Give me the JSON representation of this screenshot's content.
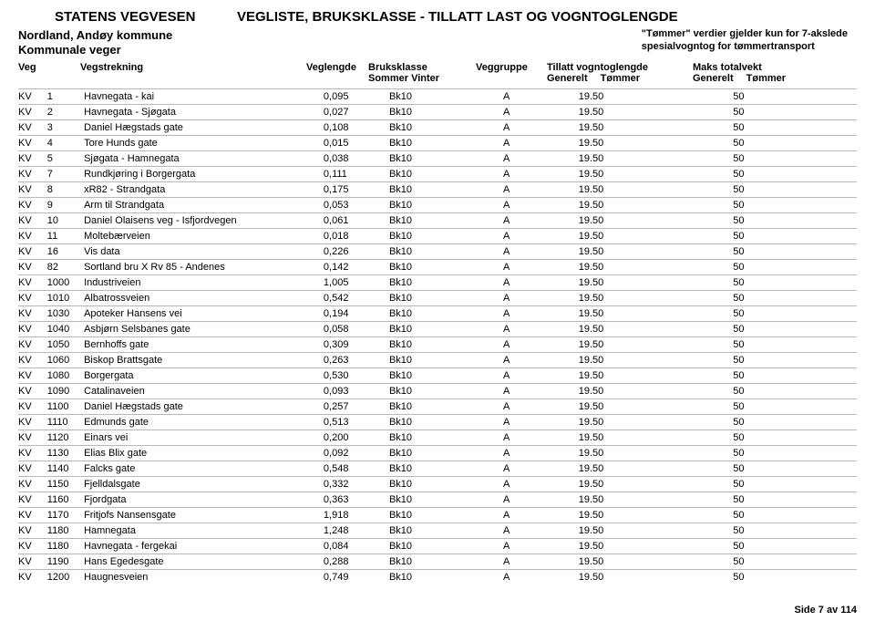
{
  "header": {
    "org": "STATENS VEGVESEN",
    "title": "VEGLISTE,  BRUKSKLASSE - TILLATT LAST OG VOGNTOGLENGDE",
    "region": "Nordland, Andøy kommune",
    "road_type": "Kommunale veger",
    "note_line1": "\"Tømmer\" verdier gjelder kun for 7-akslede",
    "note_line2": "spesialvogntog for tømmertransport"
  },
  "columns": {
    "veg": "Veg",
    "vegstrekning": "Vegstrekning",
    "veglengde": "Veglengde",
    "bruksklasse": "Bruksklasse",
    "bruksklasse_sub": "Sommer   Vinter",
    "veggruppe": "Veggruppe",
    "tillatt": "Tillatt vogntoglengde",
    "tillatt_sub_l": "Generelt",
    "tillatt_sub_r": "Tømmer",
    "maks": "Maks totalvekt",
    "maks_sub_l": "Generelt",
    "maks_sub_r": "Tømmer"
  },
  "rows": [
    {
      "veg": "KV",
      "no": "1",
      "name": "Havnegata - kai",
      "len": "0,095",
      "bk": "Bk10",
      "grp": "A",
      "tvl": "19.50",
      "max": "50"
    },
    {
      "veg": "KV",
      "no": "2",
      "name": "Havnegata - Sjøgata",
      "len": "0,027",
      "bk": "Bk10",
      "grp": "A",
      "tvl": "19.50",
      "max": "50"
    },
    {
      "veg": "KV",
      "no": "3",
      "name": "Daniel Hægstads gate",
      "len": "0,108",
      "bk": "Bk10",
      "grp": "A",
      "tvl": "19.50",
      "max": "50"
    },
    {
      "veg": "KV",
      "no": "4",
      "name": "Tore Hunds gate",
      "len": "0,015",
      "bk": "Bk10",
      "grp": "A",
      "tvl": "19.50",
      "max": "50"
    },
    {
      "veg": "KV",
      "no": "5",
      "name": "Sjøgata - Hamnegata",
      "len": "0,038",
      "bk": "Bk10",
      "grp": "A",
      "tvl": "19.50",
      "max": "50"
    },
    {
      "veg": "KV",
      "no": "7",
      "name": "Rundkjøring i Borgergata",
      "len": "0,111",
      "bk": "Bk10",
      "grp": "A",
      "tvl": "19.50",
      "max": "50"
    },
    {
      "veg": "KV",
      "no": "8",
      "name": "xR82 - Strandgata",
      "len": "0,175",
      "bk": "Bk10",
      "grp": "A",
      "tvl": "19.50",
      "max": "50"
    },
    {
      "veg": "KV",
      "no": "9",
      "name": "Arm til Strandgata",
      "len": "0,053",
      "bk": "Bk10",
      "grp": "A",
      "tvl": "19.50",
      "max": "50"
    },
    {
      "veg": "KV",
      "no": "10",
      "name": "Daniel Olaisens veg - Isfjordvegen",
      "len": "0,061",
      "bk": "Bk10",
      "grp": "A",
      "tvl": "19.50",
      "max": "50"
    },
    {
      "veg": "KV",
      "no": "11",
      "name": "Moltebærveien",
      "len": "0,018",
      "bk": "Bk10",
      "grp": "A",
      "tvl": "19.50",
      "max": "50"
    },
    {
      "veg": "KV",
      "no": "16",
      "name": "Vis data",
      "len": "0,226",
      "bk": "Bk10",
      "grp": "A",
      "tvl": "19.50",
      "max": "50"
    },
    {
      "veg": "KV",
      "no": "82",
      "name": "Sortland bru X Rv 85 - Andenes",
      "len": "0,142",
      "bk": "Bk10",
      "grp": "A",
      "tvl": "19.50",
      "max": "50"
    },
    {
      "veg": "KV",
      "no": "1000",
      "name": "Industriveien",
      "len": "1,005",
      "bk": "Bk10",
      "grp": "A",
      "tvl": "19.50",
      "max": "50"
    },
    {
      "veg": "KV",
      "no": "1010",
      "name": "Albatrossveien",
      "len": "0,542",
      "bk": "Bk10",
      "grp": "A",
      "tvl": "19.50",
      "max": "50"
    },
    {
      "veg": "KV",
      "no": "1030",
      "name": "Apoteker Hansens vei",
      "len": "0,194",
      "bk": "Bk10",
      "grp": "A",
      "tvl": "19.50",
      "max": "50"
    },
    {
      "veg": "KV",
      "no": "1040",
      "name": "Asbjørn Selsbanes gate",
      "len": "0,058",
      "bk": "Bk10",
      "grp": "A",
      "tvl": "19.50",
      "max": "50"
    },
    {
      "veg": "KV",
      "no": "1050",
      "name": "Bernhoffs gate",
      "len": "0,309",
      "bk": "Bk10",
      "grp": "A",
      "tvl": "19.50",
      "max": "50"
    },
    {
      "veg": "KV",
      "no": "1060",
      "name": "Biskop Brattsgate",
      "len": "0,263",
      "bk": "Bk10",
      "grp": "A",
      "tvl": "19.50",
      "max": "50"
    },
    {
      "veg": "KV",
      "no": "1080",
      "name": "Borgergata",
      "len": "0,530",
      "bk": "Bk10",
      "grp": "A",
      "tvl": "19.50",
      "max": "50"
    },
    {
      "veg": "KV",
      "no": "1090",
      "name": "Catalinaveien",
      "len": "0,093",
      "bk": "Bk10",
      "grp": "A",
      "tvl": "19.50",
      "max": "50"
    },
    {
      "veg": "KV",
      "no": "1100",
      "name": "Daniel Hægstads gate",
      "len": "0,257",
      "bk": "Bk10",
      "grp": "A",
      "tvl": "19.50",
      "max": "50"
    },
    {
      "veg": "KV",
      "no": "1110",
      "name": "Edmunds gate",
      "len": "0,513",
      "bk": "Bk10",
      "grp": "A",
      "tvl": "19.50",
      "max": "50"
    },
    {
      "veg": "KV",
      "no": "1120",
      "name": "Einars vei",
      "len": "0,200",
      "bk": "Bk10",
      "grp": "A",
      "tvl": "19.50",
      "max": "50"
    },
    {
      "veg": "KV",
      "no": "1130",
      "name": "Elias Blix gate",
      "len": "0,092",
      "bk": "Bk10",
      "grp": "A",
      "tvl": "19.50",
      "max": "50"
    },
    {
      "veg": "KV",
      "no": "1140",
      "name": "Falcks gate",
      "len": "0,548",
      "bk": "Bk10",
      "grp": "A",
      "tvl": "19.50",
      "max": "50"
    },
    {
      "veg": "KV",
      "no": "1150",
      "name": "Fjelldalsgate",
      "len": "0,332",
      "bk": "Bk10",
      "grp": "A",
      "tvl": "19.50",
      "max": "50"
    },
    {
      "veg": "KV",
      "no": "1160",
      "name": "Fjordgata",
      "len": "0,363",
      "bk": "Bk10",
      "grp": "A",
      "tvl": "19.50",
      "max": "50"
    },
    {
      "veg": "KV",
      "no": "1170",
      "name": "Fritjofs Nansensgate",
      "len": "1,918",
      "bk": "Bk10",
      "grp": "A",
      "tvl": "19.50",
      "max": "50"
    },
    {
      "veg": "KV",
      "no": "1180",
      "name": "Hamnegata",
      "len": "1,248",
      "bk": "Bk10",
      "grp": "A",
      "tvl": "19.50",
      "max": "50"
    },
    {
      "veg": "KV",
      "no": "1180",
      "name": "Havnegata - fergekai",
      "len": "0,084",
      "bk": "Bk10",
      "grp": "A",
      "tvl": "19.50",
      "max": "50"
    },
    {
      "veg": "KV",
      "no": "1190",
      "name": "Hans Egedesgate",
      "len": "0,288",
      "bk": "Bk10",
      "grp": "A",
      "tvl": "19.50",
      "max": "50"
    },
    {
      "veg": "KV",
      "no": "1200",
      "name": "Haugnesveien",
      "len": "0,749",
      "bk": "Bk10",
      "grp": "A",
      "tvl": "19.50",
      "max": "50"
    }
  ],
  "footer": {
    "page": "Side 7 av 114"
  }
}
